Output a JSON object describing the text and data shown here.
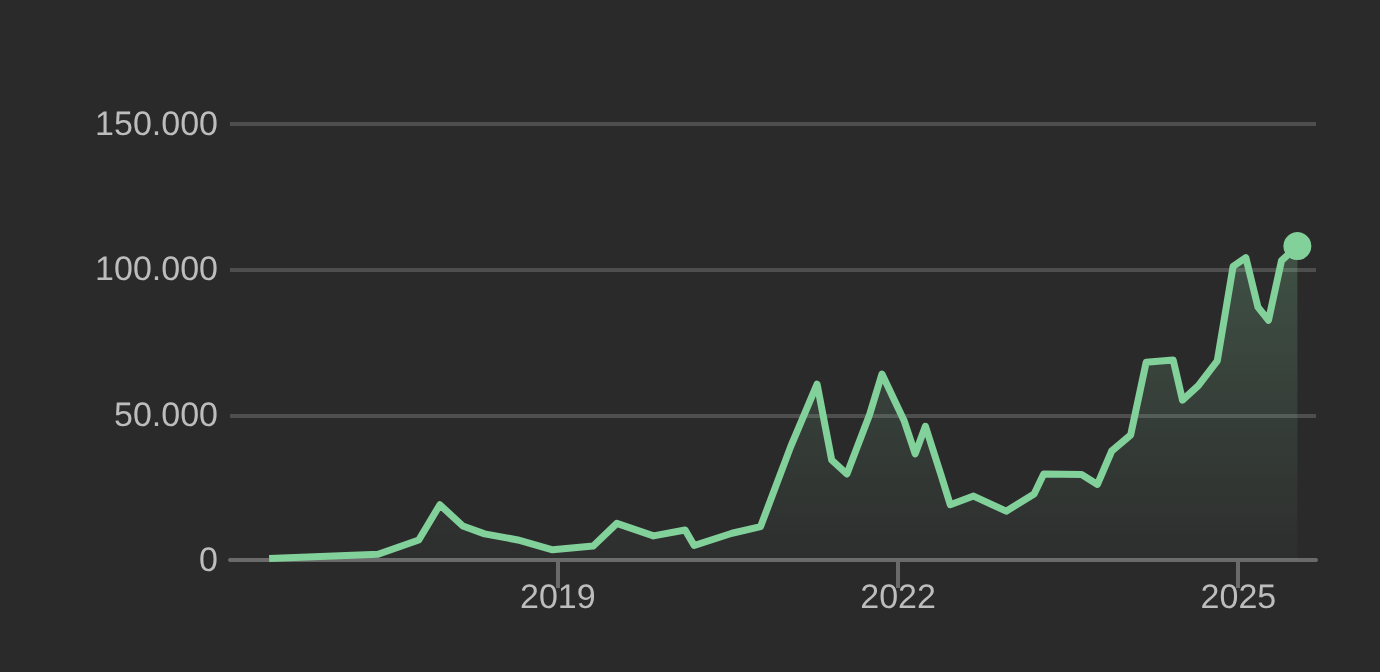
{
  "chart_data": {
    "type": "area",
    "color": "#82d09a",
    "x": [
      "2016-06-15",
      "2017-06-01",
      "2017-10-10",
      "2017-12-17",
      "2018-03-01",
      "2018-05-10",
      "2018-08-25",
      "2018-12-15",
      "2019-04-25",
      "2019-07-10",
      "2019-11-05",
      "2020-02-15",
      "2020-03-15",
      "2020-07-15",
      "2020-10-15",
      "2021-01-20",
      "2021-04-15",
      "2021-06-01",
      "2021-07-20",
      "2021-10-01",
      "2021-11-10",
      "2022-01-20",
      "2022-02-25",
      "2022-03-30",
      "2022-05-20",
      "2022-06-18",
      "2022-09-01",
      "2022-12-15",
      "2023-03-15",
      "2023-04-15",
      "2023-08-15",
      "2023-10-05",
      "2023-11-20",
      "2024-01-20",
      "2024-03-10",
      "2024-06-05",
      "2024-07-05",
      "2024-08-25",
      "2024-10-25",
      "2024-12-15",
      "2025-01-25",
      "2025-03-05",
      "2025-04-08",
      "2025-05-20",
      "2025-07-10"
    ],
    "values": [
      500,
      2000,
      6900,
      19000,
      11700,
      9000,
      6900,
      3500,
      4800,
      12600,
      8300,
      10300,
      5000,
      9200,
      11500,
      39000,
      60500,
      34400,
      29600,
      50000,
      64000,
      48000,
      36500,
      46000,
      29000,
      19000,
      22000,
      16800,
      22700,
      29600,
      29400,
      26000,
      37500,
      43000,
      68000,
      68800,
      55000,
      60000,
      68500,
      101000,
      104000,
      87000,
      82500,
      103000,
      108000
    ],
    "xlim": [
      "2016-02-10",
      "2025-09-08"
    ],
    "xticks": [
      {
        "value": "2019-01-01",
        "label": "2019"
      },
      {
        "value": "2022-01-01",
        "label": "2022"
      },
      {
        "value": "2025-01-01",
        "label": "2025"
      }
    ],
    "ylim": [
      0,
      150000
    ],
    "yticks": [
      {
        "value": 0,
        "label": "0"
      },
      {
        "value": 50000,
        "label": "50.000"
      },
      {
        "value": 100000,
        "label": "100.000"
      },
      {
        "value": 150000,
        "label": "150.000"
      }
    ],
    "grid": "y"
  }
}
